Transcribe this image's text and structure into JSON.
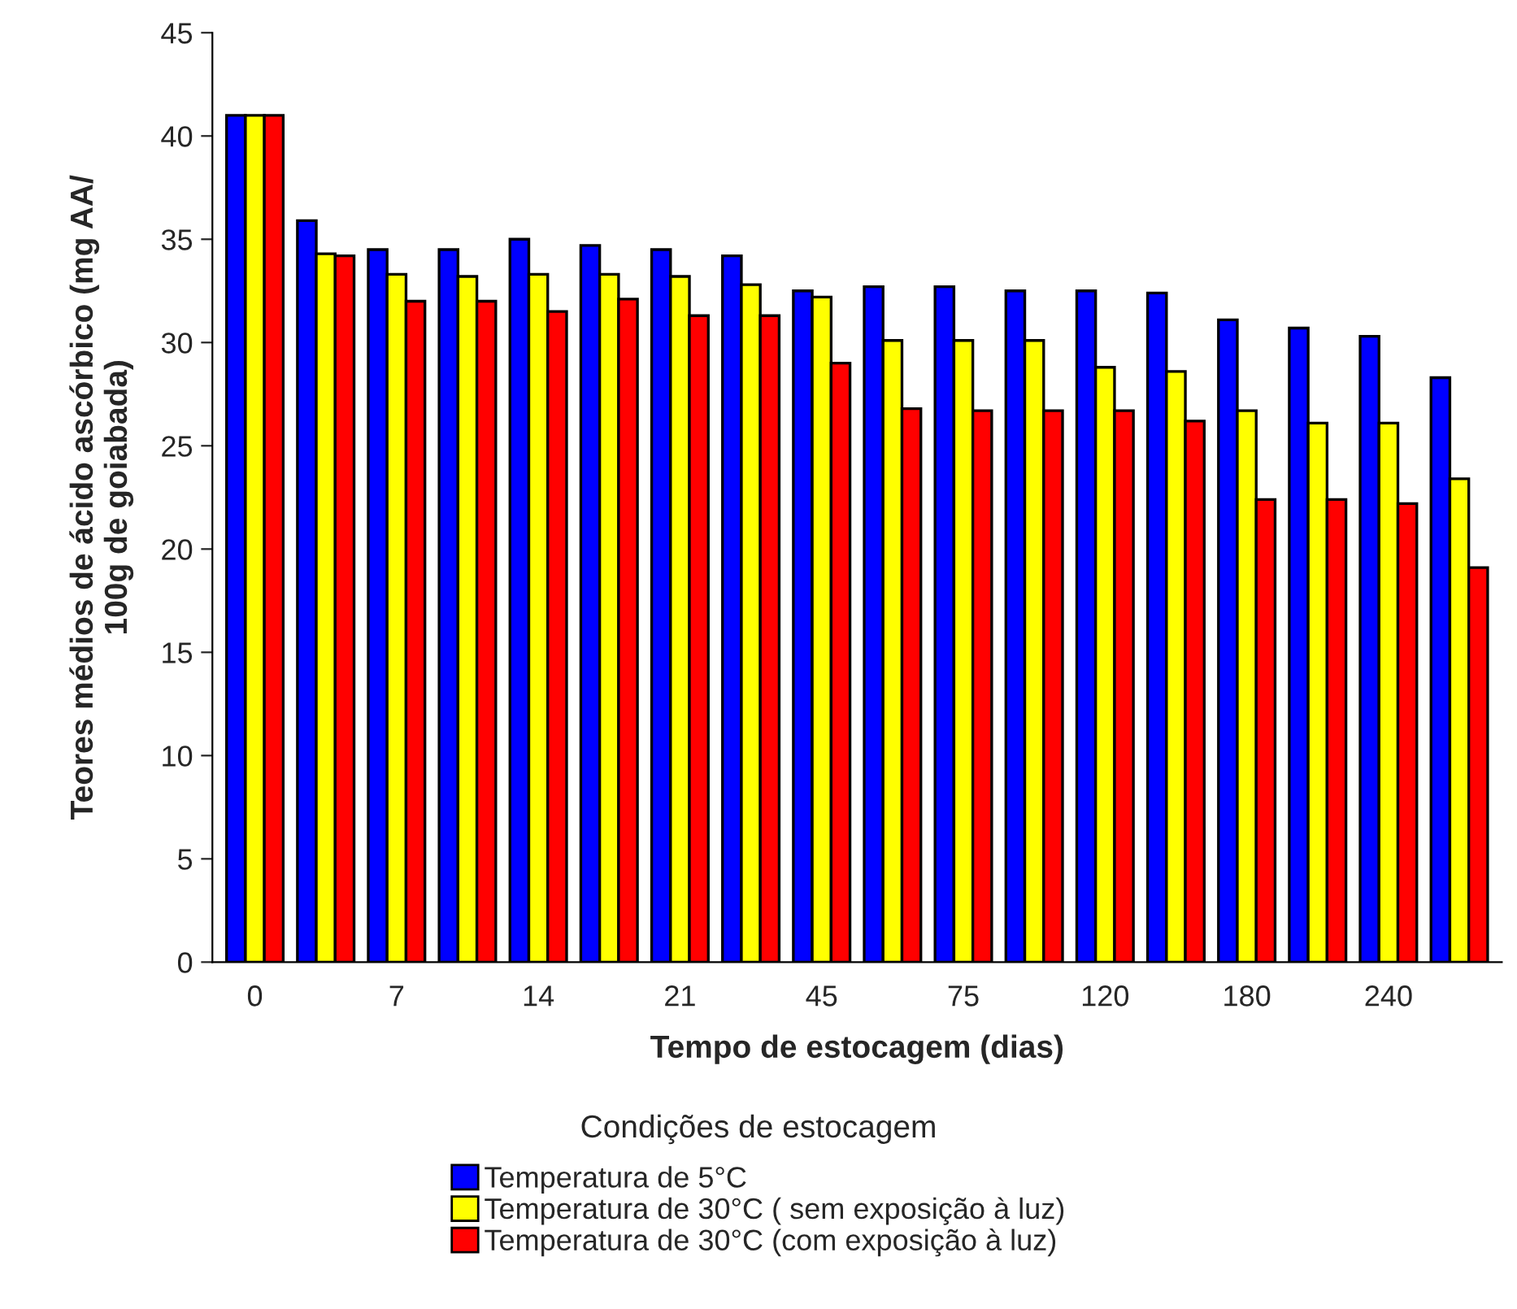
{
  "chart_data": {
    "type": "bar",
    "xlabel": "Tempo de estocagem (dias)",
    "ylabel": "Teores médios de ácido ascórbico (mg AA/\n100g de goiabada)",
    "legend_title": "Condições de estocagem",
    "categories": [
      "0",
      null,
      "7",
      null,
      "14",
      null,
      "21",
      null,
      "45",
      null,
      "75",
      null,
      "120",
      null,
      "180",
      null,
      "240",
      null
    ],
    "series": [
      {
        "name": "Temperatura de 5°C",
        "color": "#0000ff",
        "values": [
          41.0,
          35.9,
          34.5,
          34.5,
          35.0,
          34.7,
          34.5,
          34.2,
          32.5,
          32.7,
          32.7,
          32.5,
          32.5,
          32.4,
          31.1,
          30.7,
          30.3,
          28.3
        ]
      },
      {
        "name": "Temperatura de 30°C ( sem exposição à luz)",
        "color": "#ffff00",
        "values": [
          41.0,
          34.3,
          33.3,
          33.2,
          33.3,
          33.3,
          33.2,
          32.8,
          32.2,
          30.1,
          30.1,
          30.1,
          28.8,
          28.6,
          26.7,
          26.1,
          26.1,
          23.4
        ]
      },
      {
        "name": "Temperatura de 30°C (com exposição à luz)",
        "color": "#ff0000",
        "values": [
          41.0,
          34.2,
          32.0,
          32.0,
          31.5,
          32.1,
          31.3,
          31.3,
          29.0,
          26.8,
          26.7,
          26.7,
          26.7,
          26.2,
          22.4,
          22.4,
          22.2,
          19.1
        ]
      }
    ],
    "ylim": [
      0,
      45
    ],
    "yticks": [
      0,
      5,
      10,
      15,
      20,
      25,
      30,
      35,
      40,
      45
    ],
    "grid": false,
    "legend": "bottom"
  }
}
